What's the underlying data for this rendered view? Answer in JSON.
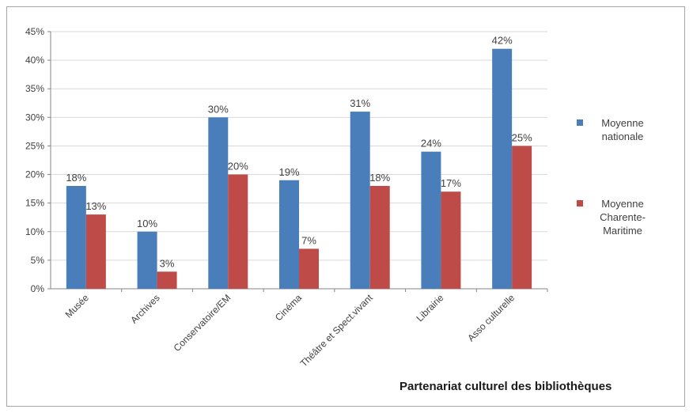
{
  "chart_data": {
    "type": "bar",
    "title": "Partenariat culturel des bibliothèques",
    "categories": [
      "Musée",
      "Archives",
      "Conservatoire/EM",
      "Cinéma",
      "Théâtre et Spect.vivant",
      "Librairie",
      "Asso culturelle"
    ],
    "series": [
      {
        "name": "Moyenne nationale",
        "values": [
          18,
          10,
          30,
          19,
          31,
          24,
          42
        ],
        "labels": [
          "18%",
          "10%",
          "30%",
          "19%",
          "31%",
          "24%",
          "42%"
        ],
        "color": "#4a7ebb",
        "legend_lines": [
          "Moyenne",
          "nationale"
        ]
      },
      {
        "name": "Moyenne Charente-Maritime",
        "values": [
          13,
          3,
          20,
          7,
          18,
          17,
          25
        ],
        "labels": [
          "13%",
          "3%",
          "20%",
          "7%",
          "18%",
          "17%",
          "25%"
        ],
        "color": "#be4b48",
        "legend_lines": [
          "Moyenne",
          "Charente-",
          "Maritime"
        ]
      }
    ],
    "ylim": [
      0,
      45
    ],
    "yticks": [
      "0%",
      "5%",
      "10%",
      "15%",
      "20%",
      "25%",
      "30%",
      "35%",
      "40%",
      "45%"
    ],
    "grid": true,
    "legend_position": "right"
  }
}
